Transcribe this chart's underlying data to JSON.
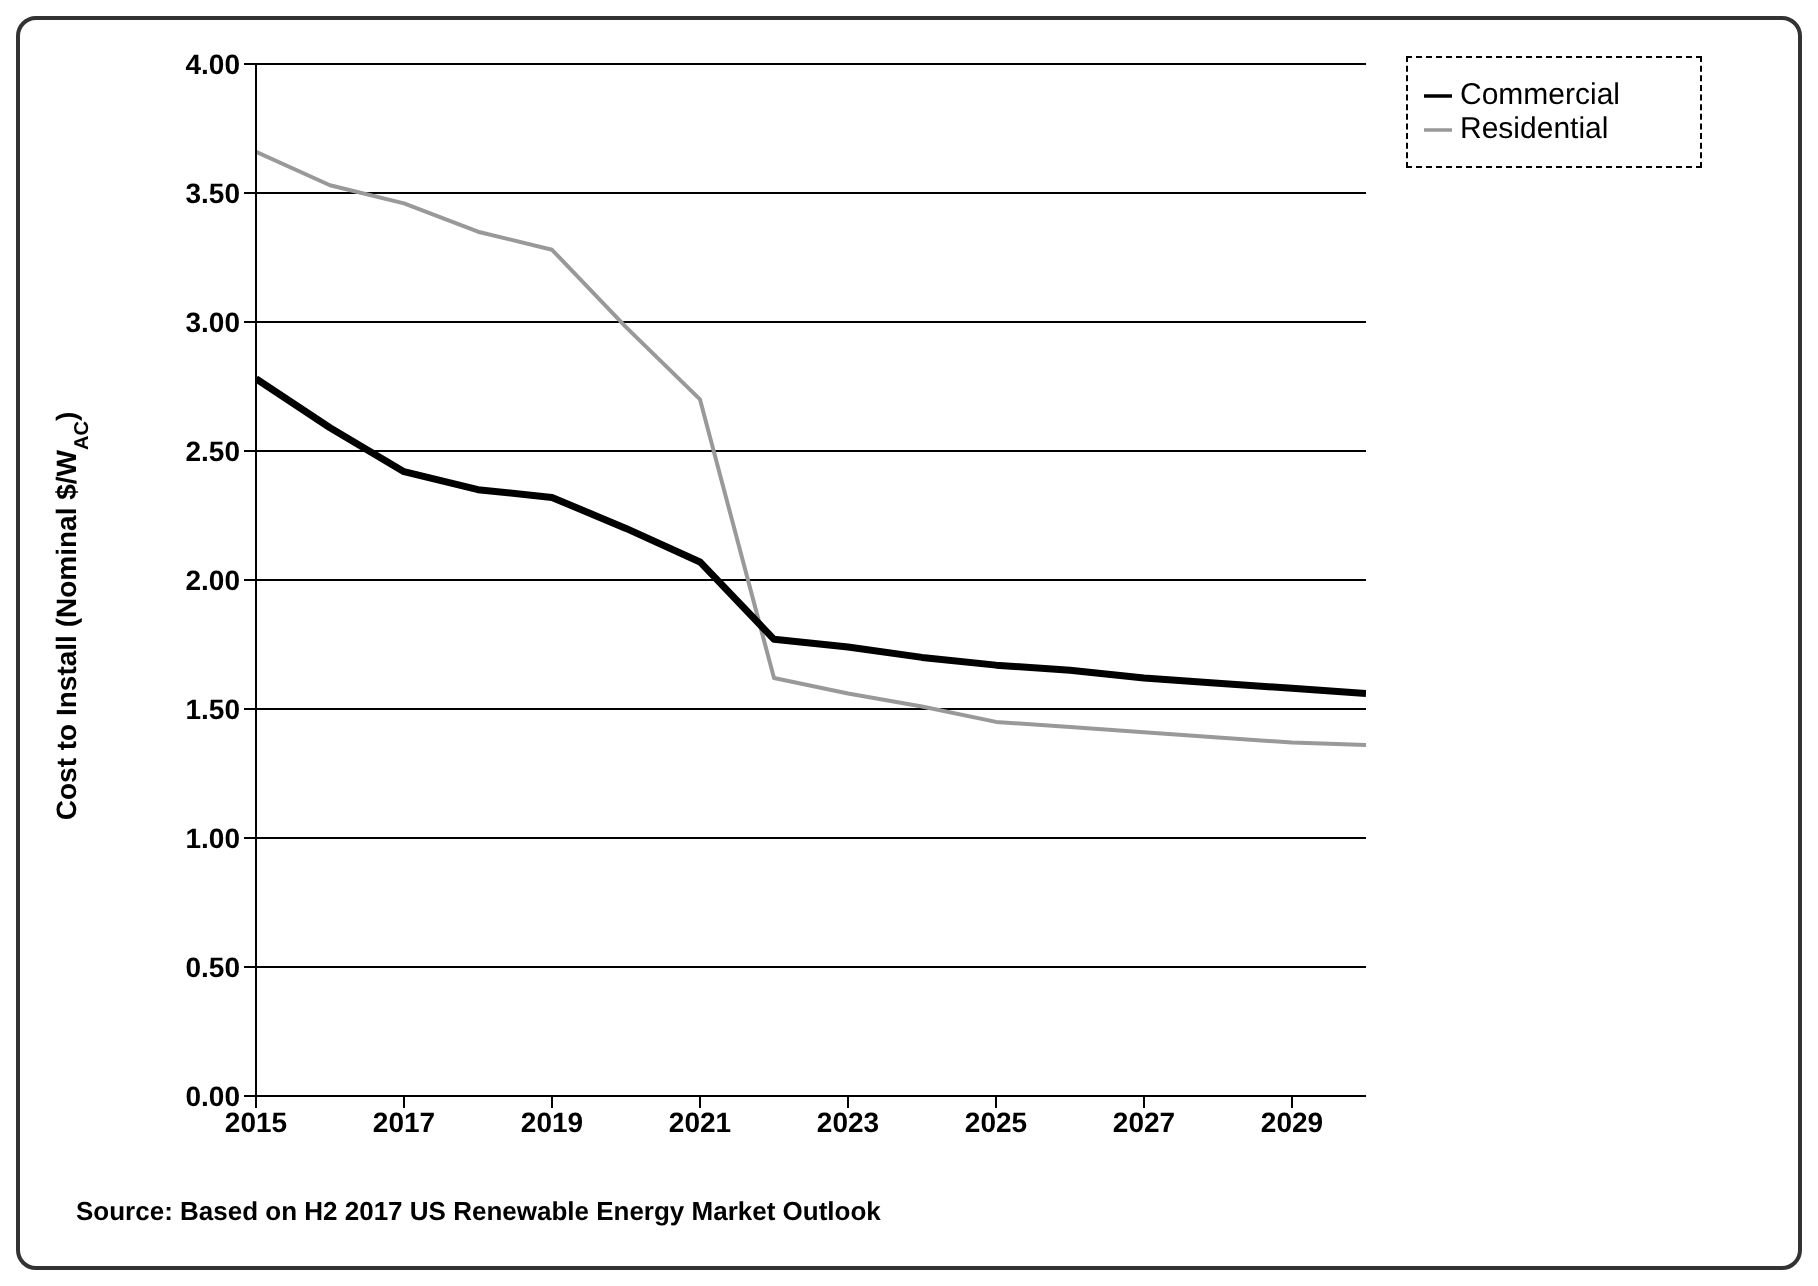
{
  "chart_data": {
    "type": "line",
    "ylabel": "Cost to Install (Nominal $/W$_{AC}$)",
    "annotations": [
      "Source: Based on H2 2017 US Renewable Energy Market Outlook"
    ],
    "x": [
      2015,
      2016,
      2017,
      2018,
      2019,
      2020,
      2021,
      2022,
      2023,
      2024,
      2025,
      2026,
      2027,
      2028,
      2029,
      2030
    ],
    "series": [
      {
        "name": "Residential",
        "color": "#999999",
        "values": [
          3.66,
          3.53,
          3.46,
          3.35,
          3.28,
          2.98,
          2.7,
          1.62,
          1.56,
          1.51,
          1.45,
          1.43,
          1.41,
          1.39,
          1.37,
          1.36
        ]
      },
      {
        "name": "Commercial",
        "color": "#000000",
        "values": [
          2.78,
          2.59,
          2.42,
          2.35,
          2.32,
          2.2,
          2.07,
          1.77,
          1.74,
          1.7,
          1.67,
          1.65,
          1.62,
          1.6,
          1.58,
          1.56
        ]
      }
    ],
    "xlim": [
      2015,
      2030
    ],
    "xticks": [
      2015,
      2017,
      2019,
      2021,
      2023,
      2025,
      2027,
      2029
    ],
    "ylim": [
      0,
      4
    ],
    "yticks": [
      {
        "value": 0,
        "label": "0.00"
      },
      {
        "value": 0.5,
        "label": "0.50"
      },
      {
        "value": 1,
        "label": "1.00"
      },
      {
        "value": 1.5,
        "label": "1.50"
      },
      {
        "value": 2,
        "label": "2.00"
      },
      {
        "value": 2.5,
        "label": "2.50"
      },
      {
        "value": 3,
        "label": "3.00"
      },
      {
        "value": 3.5,
        "label": "3.50"
      },
      {
        "value": 4,
        "label": "4.00"
      }
    ],
    "grid": "y",
    "legend": "top right",
    "marker": "none",
    "line_style": "solid"
  }
}
